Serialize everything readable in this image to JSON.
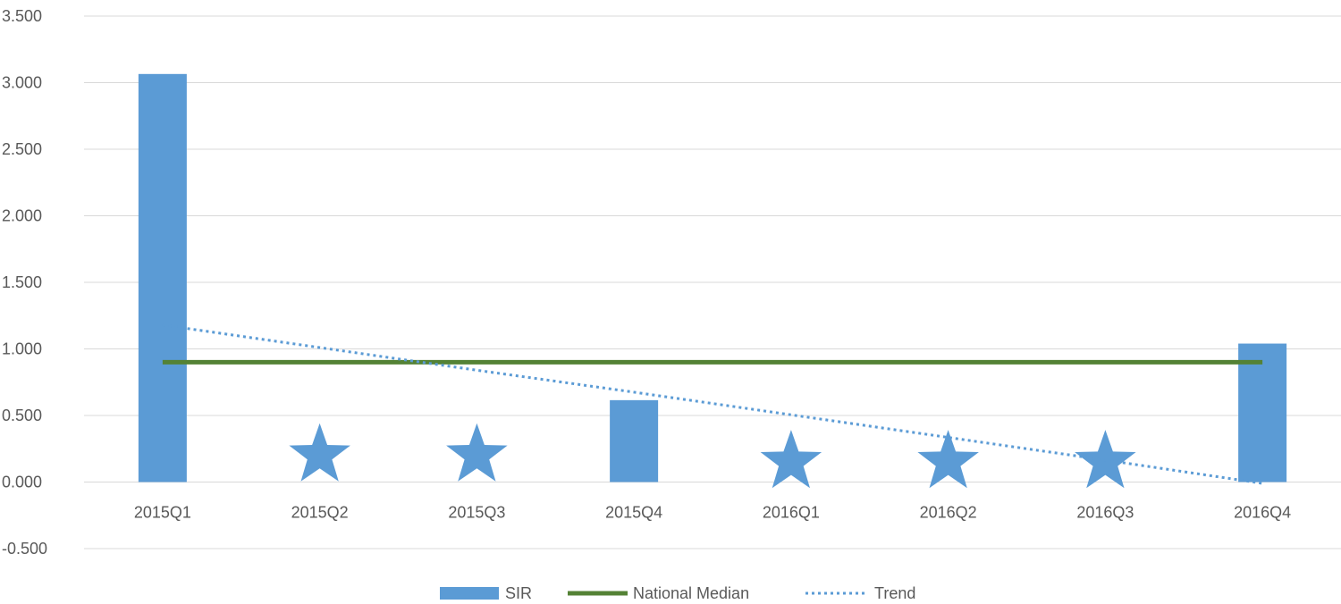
{
  "chart_data": {
    "type": "bar",
    "categories": [
      "2015Q1",
      "2015Q2",
      "2015Q3",
      "2015Q4",
      "2016Q1",
      "2016Q2",
      "2016Q3",
      "2016Q4"
    ],
    "series": [
      {
        "name": "SIR",
        "kind": "bar",
        "color": "#5B9BD5",
        "values": [
          3.065,
          0,
          0,
          0.615,
          0,
          0,
          0,
          1.04
        ]
      },
      {
        "name": "National Median",
        "kind": "line",
        "color": "#548235",
        "values": [
          0.9,
          0.9,
          0.9,
          0.9,
          0.9,
          0.9,
          0.9,
          0.9
        ]
      },
      {
        "name": "Trend",
        "kind": "line",
        "style": "dotted",
        "color": "#5B9BD5",
        "values": [
          1.18,
          1.01,
          0.84,
          0.675,
          0.505,
          0.335,
          0.165,
          -0.01
        ]
      }
    ],
    "star_markers": {
      "icon": "star-icon",
      "color": "#5B9BD5",
      "categories": [
        "2015Q2",
        "2015Q3",
        "2016Q1",
        "2016Q2",
        "2016Q3"
      ],
      "values": [
        0.2,
        0.2,
        0.15,
        0.15,
        0.15
      ]
    },
    "y_ticks": [
      "-0.500",
      "0.000",
      "0.500",
      "1.000",
      "1.500",
      "2.000",
      "2.500",
      "3.000",
      "3.500"
    ],
    "y_tick_values": [
      -0.5,
      0,
      0.5,
      1.0,
      1.5,
      2.0,
      2.5,
      3.0,
      3.5
    ],
    "ylim": [
      -0.5,
      3.5
    ],
    "grid": true,
    "legend_position": "bottom-center",
    "title": "",
    "xlabel": "",
    "ylabel": ""
  }
}
